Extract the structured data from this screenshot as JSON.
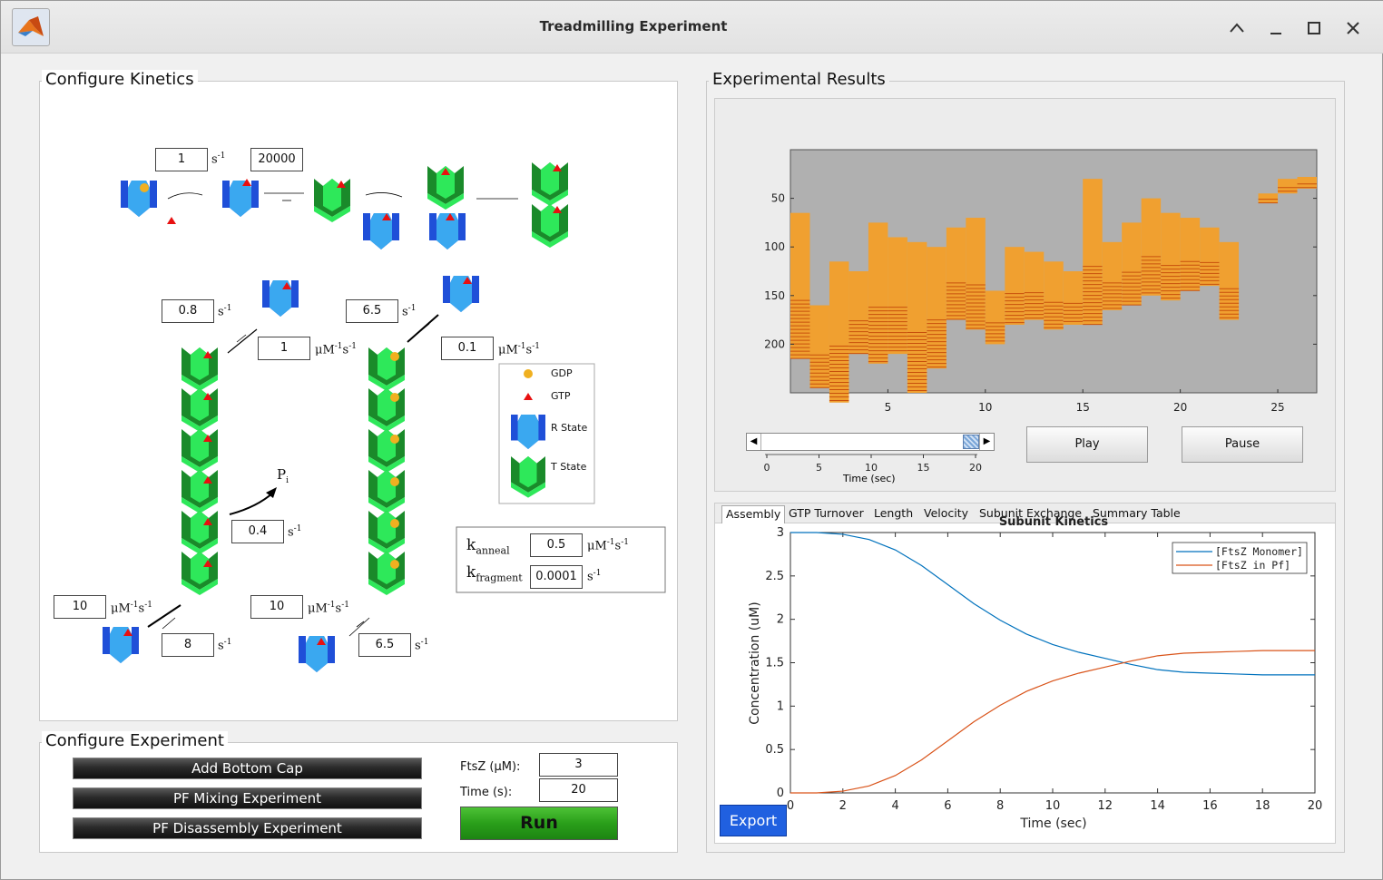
{
  "window": {
    "title": "Treadmilling Experiment"
  },
  "kinetics": {
    "title": "Configure Kinetics",
    "rates": {
      "r1": "1",
      "r2": "20000",
      "r3": "0.8",
      "r4": "6.5",
      "r5": "1",
      "r6": "0.1",
      "r7": "0.4",
      "r8": "10",
      "r9": "10",
      "r10": "8",
      "r11": "6.5"
    },
    "units": {
      "s_inv": "s",
      "uM": "μM",
      "neg1": "-1"
    },
    "pi_label": "P",
    "pi_sub": "i",
    "legend": {
      "gdp": "GDP",
      "gtp": "GTP",
      "r_state": "R State",
      "t_state": "T State"
    },
    "anneal_label": "k",
    "anneal_sub": "anneal",
    "anneal_value": "0.5",
    "fragment_label": "k",
    "fragment_sub": "fragment",
    "fragment_value": "0.0001"
  },
  "experiment": {
    "title": "Configure Experiment",
    "add_bottom_cap": "Add Bottom Cap",
    "pf_mixing": "PF Mixing Experiment",
    "pf_disassembly": "PF Disassembly Experiment",
    "ftsz_label": "FtsZ (μM):",
    "ftsz_value": "3",
    "time_label": "Time (s):",
    "time_value": "20",
    "run": "Run"
  },
  "results": {
    "title": "Experimental Results",
    "kymo_yticks": [
      "50",
      "100",
      "150",
      "200"
    ],
    "kymo_xticks": [
      "5",
      "10",
      "15",
      "20",
      "25"
    ],
    "slider_ticks": [
      "0",
      "5",
      "10",
      "15",
      "20"
    ],
    "slider_label": "Time (sec)",
    "slider_value": 1.0,
    "play": "Play",
    "pause": "Pause",
    "tabs": [
      "Assembly",
      "GTP Turnover",
      "Length",
      "Velocity",
      "Subunit Exchange",
      "Summary Table"
    ],
    "export": "Export",
    "colors": {
      "monomer": "#0072bd",
      "polymer": "#d95319",
      "kymo_fill": "#f0a030",
      "kymo_bg": "#b0b0b0"
    }
  },
  "chart_data": {
    "type": "line",
    "title": "Subunit Kinetics",
    "xlabel": "Time (sec)",
    "ylabel": "Concentration (uM)",
    "xlim": [
      0,
      20
    ],
    "ylim": [
      0,
      3
    ],
    "xticks": [
      "0",
      "2",
      "4",
      "6",
      "8",
      "10",
      "12",
      "14",
      "16",
      "18",
      "20"
    ],
    "yticks": [
      "0",
      "0.5",
      "1",
      "1.5",
      "2",
      "2.5",
      "3"
    ],
    "legend_position": "top-right",
    "x": [
      0,
      1,
      2,
      3,
      4,
      5,
      6,
      7,
      8,
      9,
      10,
      11,
      12,
      13,
      14,
      15,
      16,
      17,
      18,
      19,
      20
    ],
    "series": [
      {
        "name": "[FtsZ Monomer]",
        "values": [
          3.0,
          3.0,
          2.98,
          2.92,
          2.8,
          2.62,
          2.4,
          2.18,
          1.99,
          1.83,
          1.71,
          1.62,
          1.55,
          1.48,
          1.42,
          1.39,
          1.38,
          1.37,
          1.36,
          1.36,
          1.36
        ]
      },
      {
        "name": "[FtsZ in Pf]",
        "values": [
          0.0,
          0.0,
          0.02,
          0.08,
          0.2,
          0.38,
          0.6,
          0.82,
          1.01,
          1.17,
          1.29,
          1.38,
          1.45,
          1.52,
          1.58,
          1.61,
          1.62,
          1.63,
          1.64,
          1.64,
          1.64
        ]
      }
    ]
  }
}
